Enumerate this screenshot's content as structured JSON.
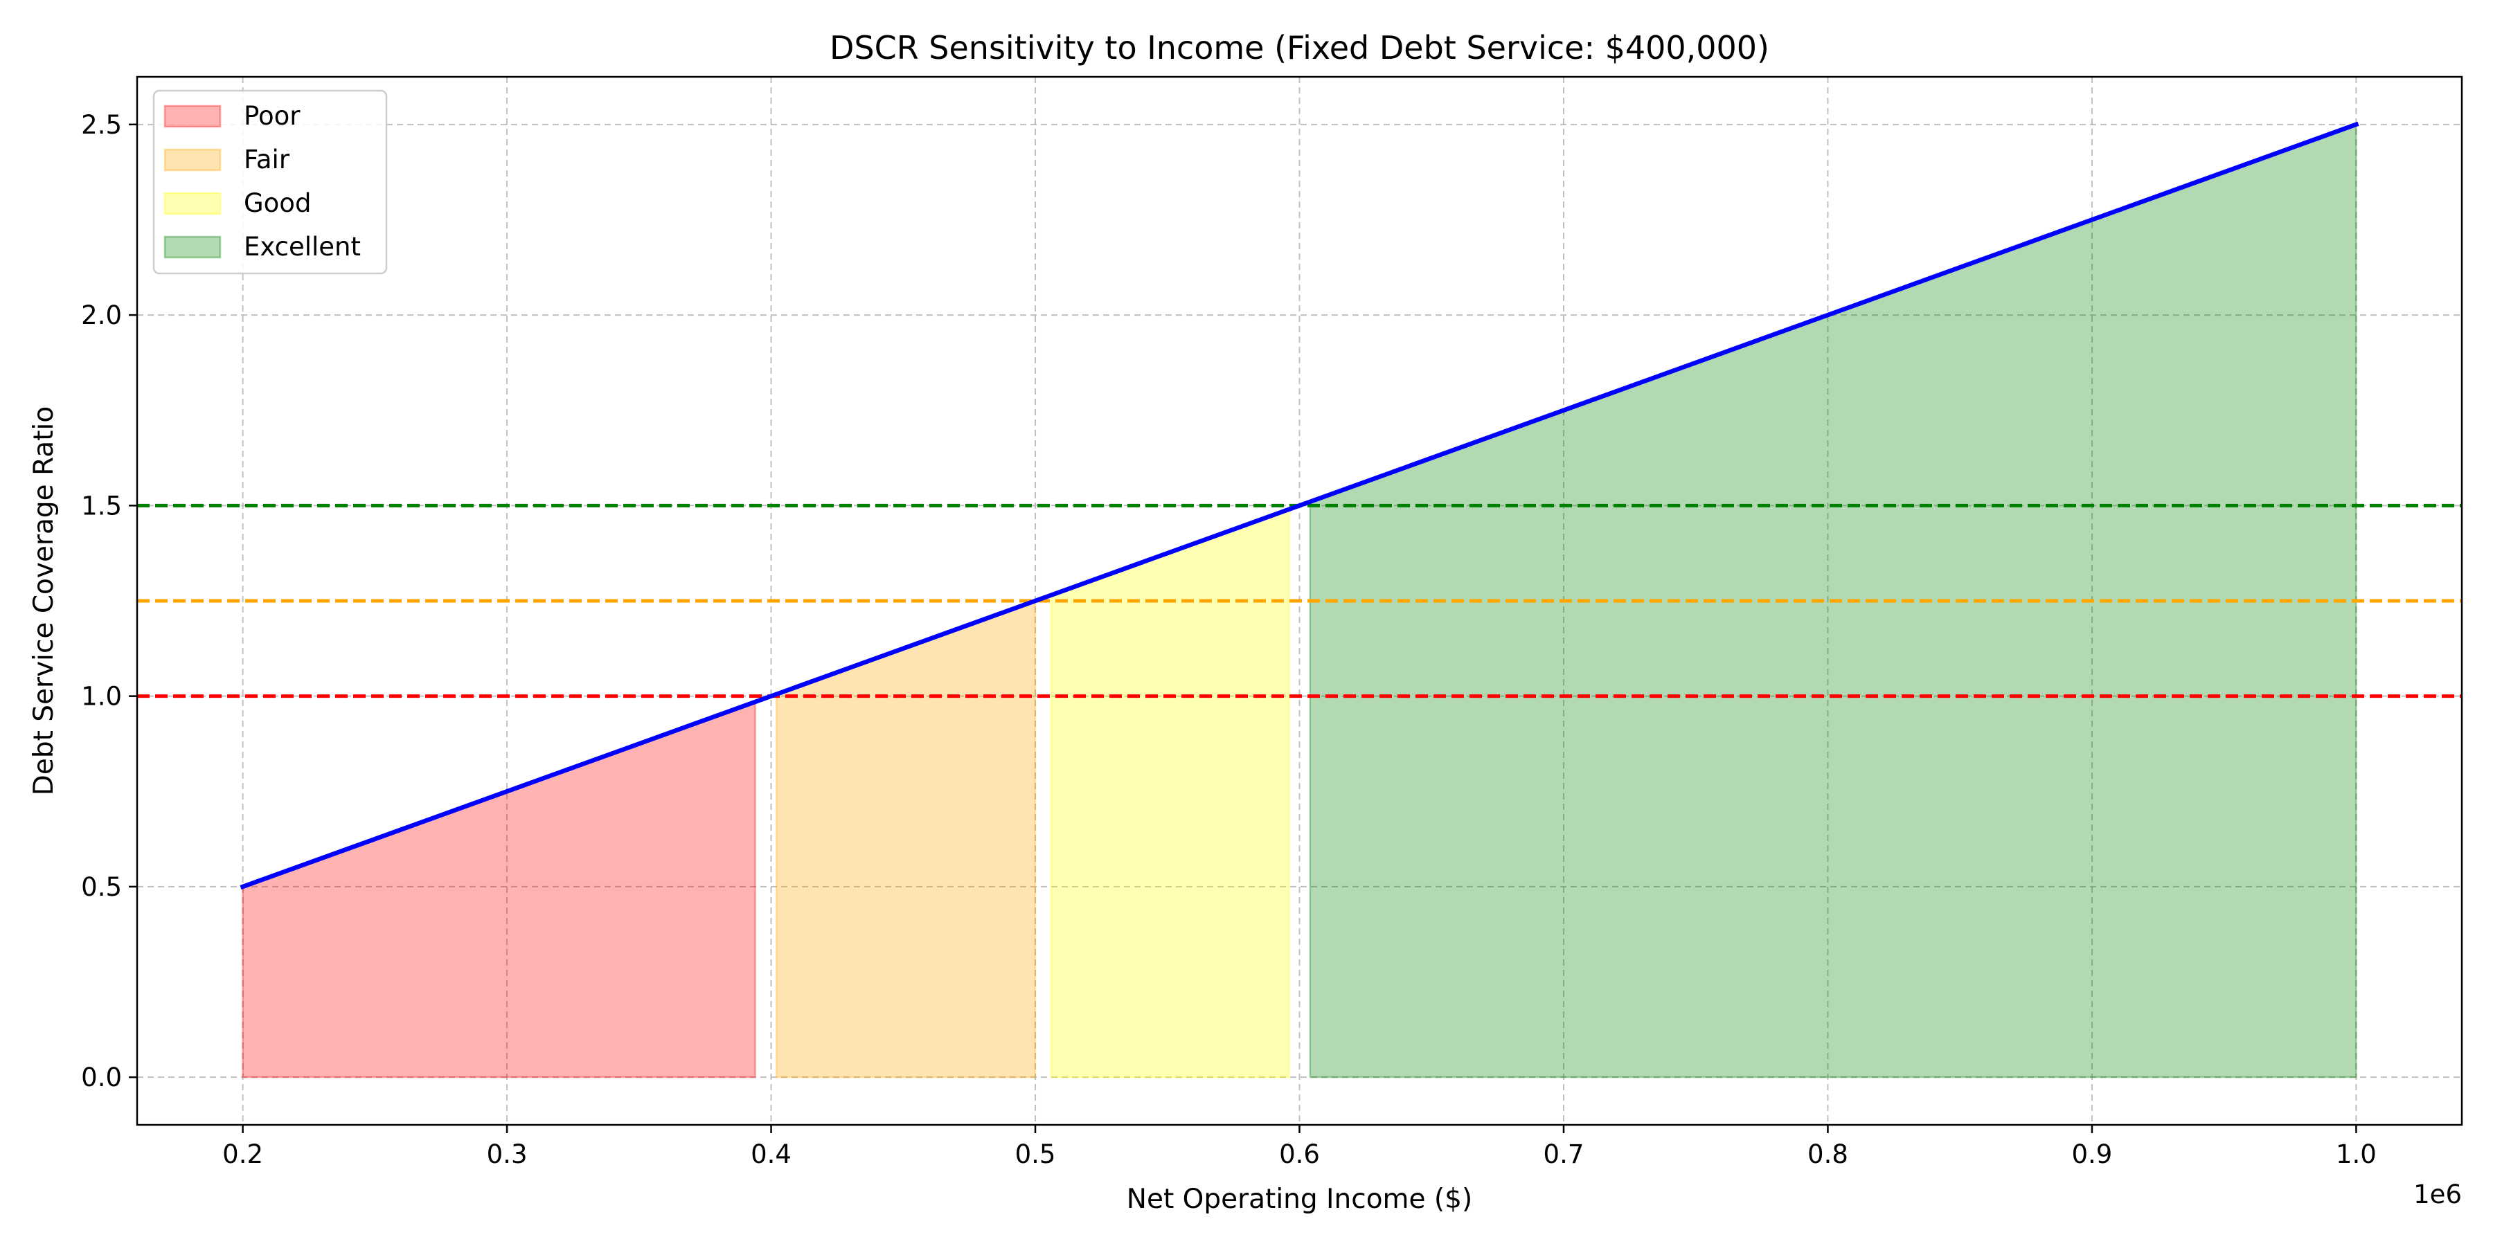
{
  "chart_data": {
    "type": "area",
    "title": "DSCR Sensitivity to Income (Fixed Debt Service: $400,000)",
    "xlabel": "Net Operating Income ($)",
    "ylabel": "Debt Service Coverage Ratio",
    "x_offset_label": "1e6",
    "xlim": [
      0.16,
      1.04
    ],
    "ylim": [
      -0.125,
      2.625
    ],
    "x_ticks": [
      0.2,
      0.3,
      0.4,
      0.5,
      0.6,
      0.7,
      0.8,
      0.9,
      1.0
    ],
    "x_tick_labels": [
      "0.2",
      "0.3",
      "0.4",
      "0.5",
      "0.6",
      "0.7",
      "0.8",
      "0.9",
      "1.0"
    ],
    "y_ticks": [
      0.0,
      0.5,
      1.0,
      1.5,
      2.0,
      2.5
    ],
    "y_tick_labels": [
      "0.0",
      "0.5",
      "1.0",
      "1.5",
      "2.0",
      "2.5"
    ],
    "grid": true,
    "legend_position": "top-left",
    "line": {
      "name": "DSCR",
      "color": "#0000ff",
      "x": [
        0.2,
        1.0
      ],
      "y": [
        0.5,
        2.5
      ]
    },
    "regions": [
      {
        "name": "Poor",
        "x_start": 0.2,
        "x_end": 0.394,
        "color": "#ff0000",
        "edge": "#f08080"
      },
      {
        "name": "Fair",
        "x_start": 0.402,
        "x_end": 0.5,
        "color": "#ffa500",
        "edge": "#ffd090"
      },
      {
        "name": "Good",
        "x_start": 0.506,
        "x_end": 0.596,
        "color": "#ffff00",
        "edge": "#ffff80"
      },
      {
        "name": "Excellent",
        "x_start": 0.604,
        "x_end": 1.0,
        "color": "#008000",
        "edge": "#80b880"
      }
    ],
    "thresholds": [
      {
        "y": 1.0,
        "color": "#ff0000"
      },
      {
        "y": 1.25,
        "color": "#ffa500"
      },
      {
        "y": 1.5,
        "color": "#008000"
      }
    ]
  }
}
